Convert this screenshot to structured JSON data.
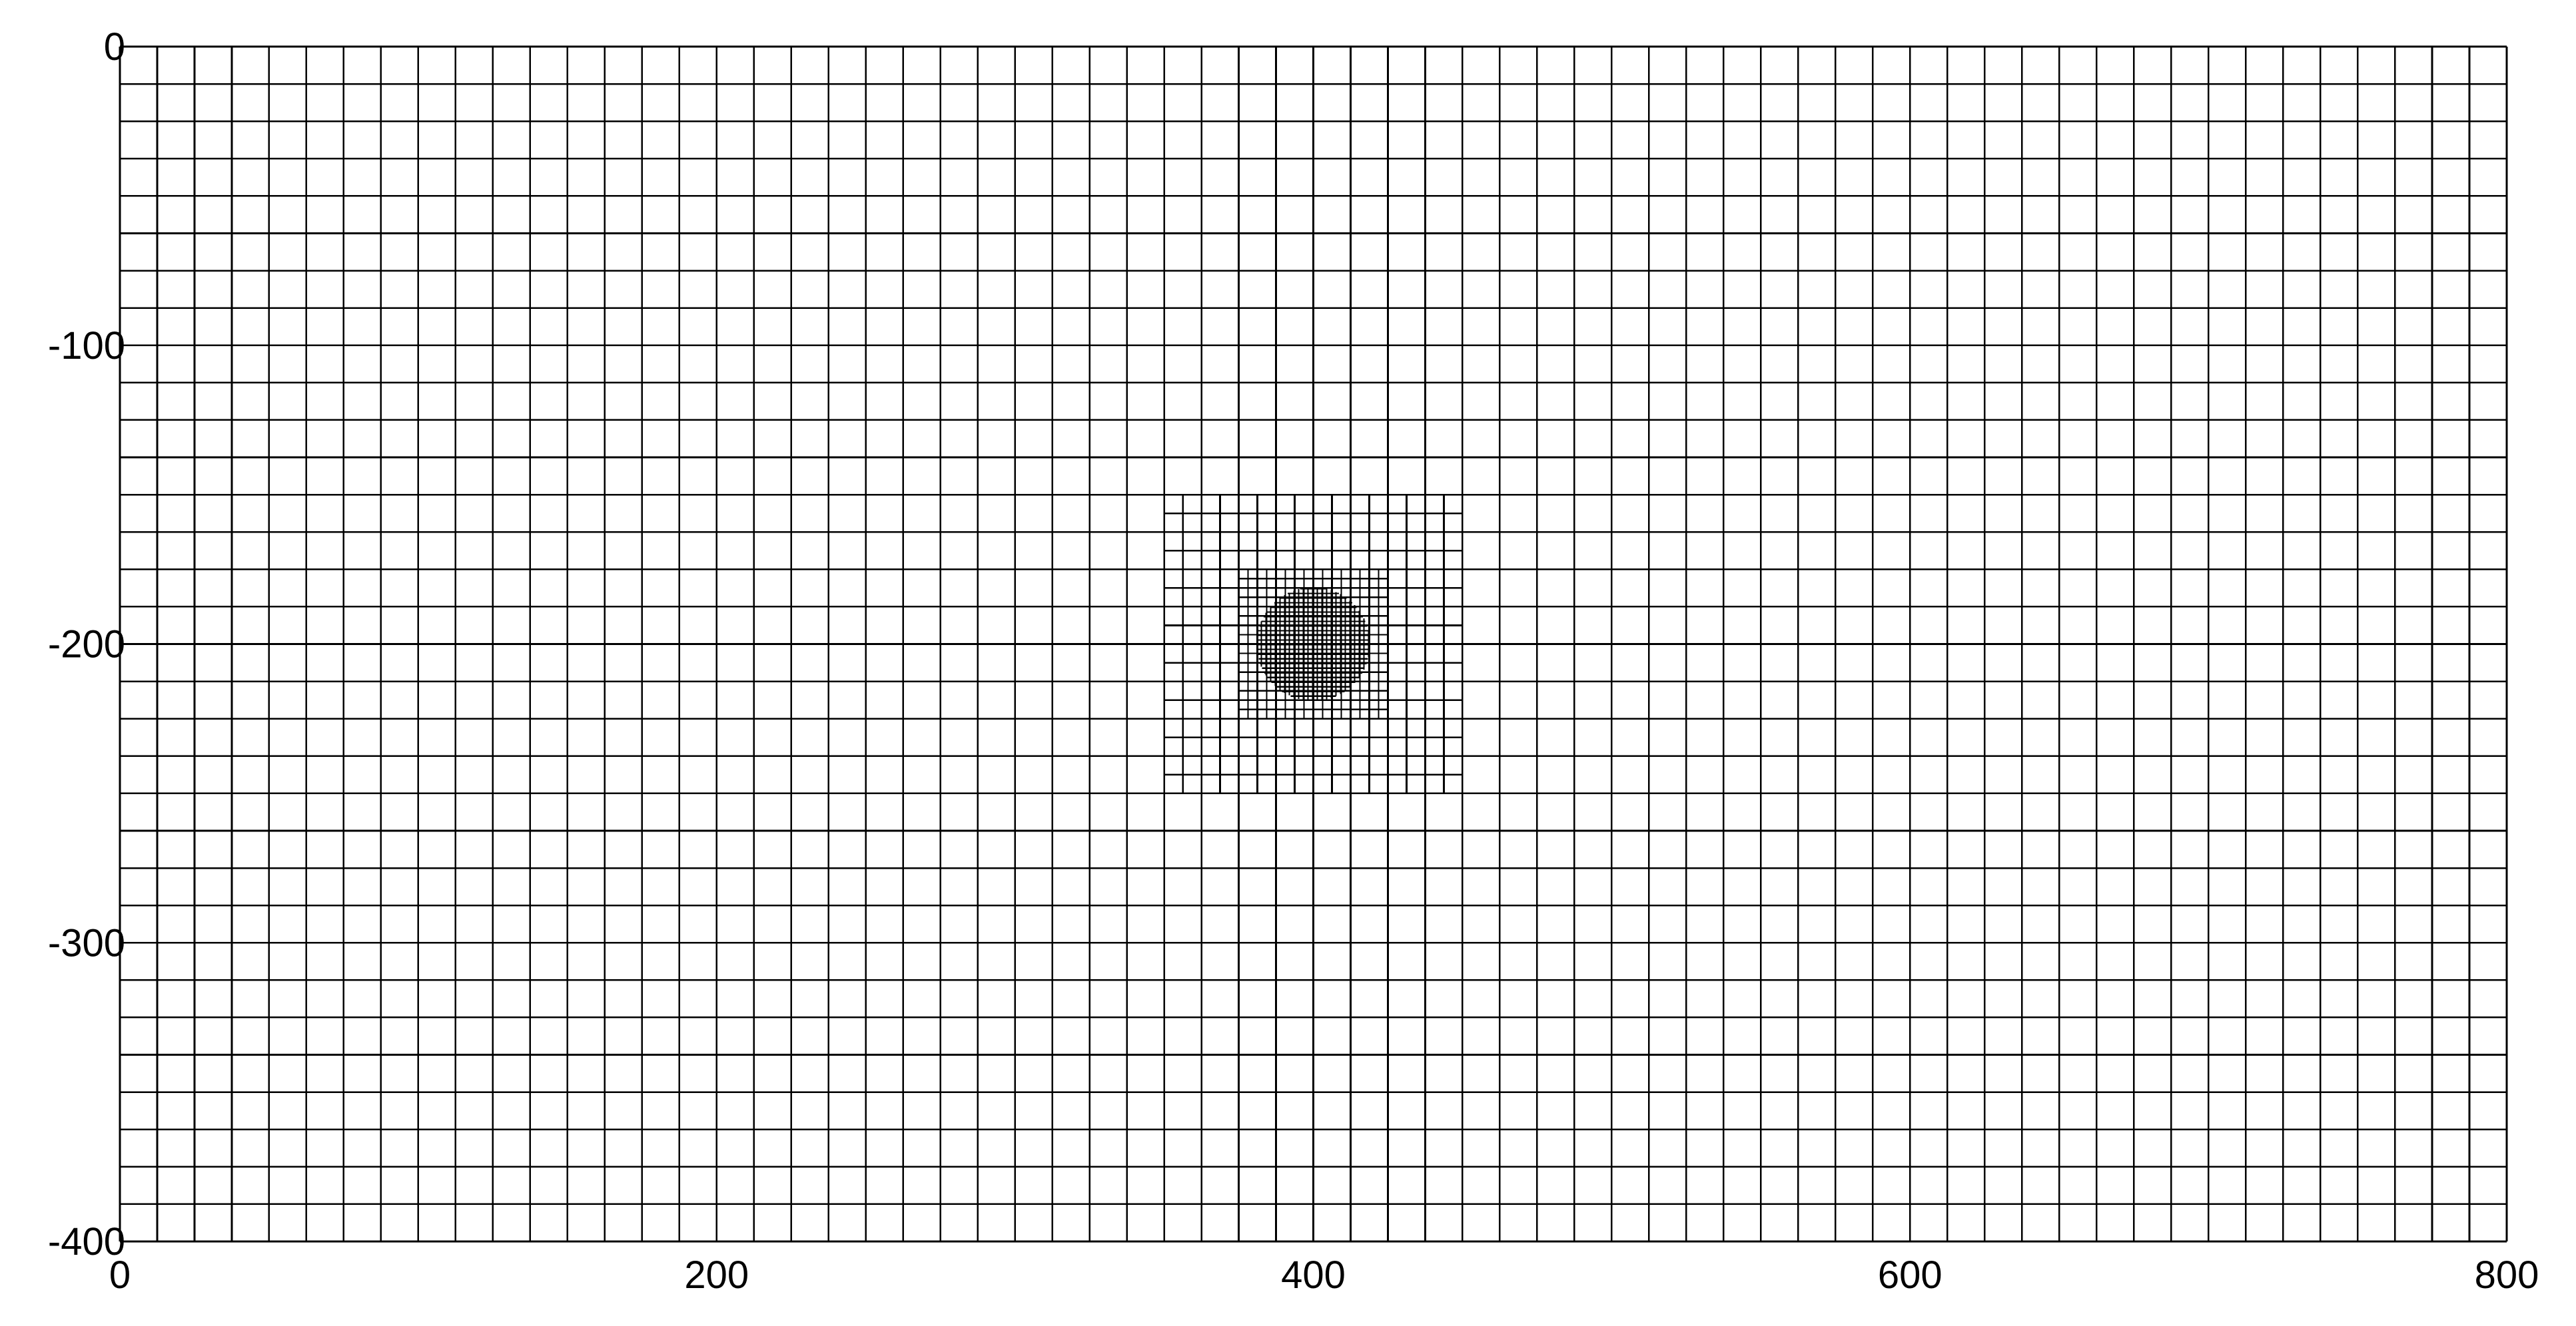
{
  "figure": {
    "x_tick_labels": [
      "0",
      "200",
      "400",
      "600",
      "800"
    ],
    "y_tick_labels": [
      "0",
      "-100",
      "-200",
      "-300",
      "-400"
    ]
  },
  "chart_data": {
    "type": "mesh",
    "xlim": [
      0,
      800
    ],
    "ylim": [
      -400,
      0
    ],
    "x_ticks": [
      0,
      200,
      400,
      600,
      800
    ],
    "y_ticks": [
      0,
      -100,
      -200,
      -300,
      -400
    ],
    "line_color": "#000000",
    "background": "#ffffff",
    "refinement_levels": [
      {
        "level": 0,
        "cell_size": 12.5,
        "x_range": [
          0,
          800
        ],
        "y_range": [
          -400,
          0
        ]
      },
      {
        "level": 1,
        "cell_size": 6.25,
        "x_range": [
          350,
          450
        ],
        "y_range": [
          -250,
          -150
        ]
      },
      {
        "level": 2,
        "cell_size": 3.125,
        "x_range": [
          375,
          425
        ],
        "y_range": [
          -225,
          -175
        ]
      },
      {
        "level": 3,
        "cell_size": 1.5625,
        "shape": "disk",
        "center": [
          400,
          -200
        ],
        "radius": 19
      }
    ]
  }
}
